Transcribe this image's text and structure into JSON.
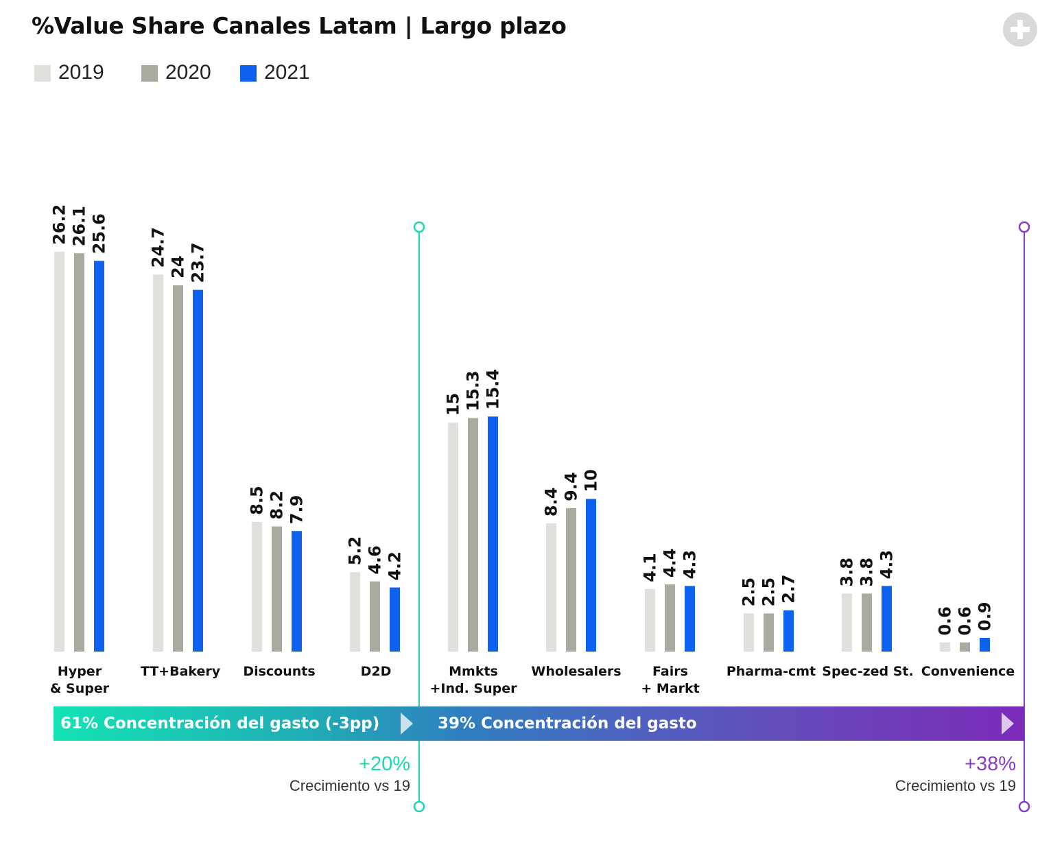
{
  "title": "%Value Share Canales Latam | Largo plazo",
  "add_button_icon": "plus-icon",
  "colors": {
    "2019": "#e0dfdb",
    "2020": "#aaaa9e",
    "2021": "#0e62ee",
    "teal": "#1ad8b2",
    "purple": "#8a3cc7"
  },
  "legend": [
    {
      "label": "2019",
      "color": "#e0dfdb"
    },
    {
      "label": "2020",
      "color": "#aaaa9e"
    },
    {
      "label": "2021",
      "color": "#0e62ee"
    }
  ],
  "chart_data": {
    "type": "bar",
    "categories": [
      [
        "Hyper",
        "& Super"
      ],
      [
        "TT+Bakery"
      ],
      [
        "Discounts"
      ],
      [
        "D2D"
      ],
      [
        "Mmkts",
        "+Ind. Super"
      ],
      [
        "Wholesalers"
      ],
      [
        "Fairs",
        "+ Markt"
      ],
      [
        "Pharma-cmt"
      ],
      [
        "Spec-zed St."
      ],
      [
        "Convenience"
      ]
    ],
    "series": [
      {
        "name": "2019",
        "values": [
          26.2,
          24.7,
          8.5,
          5.2,
          15,
          8.4,
          4.1,
          2.5,
          3.8,
          0.6
        ]
      },
      {
        "name": "2020",
        "values": [
          26.1,
          24,
          8.2,
          4.6,
          15.3,
          9.4,
          4.4,
          2.5,
          3.8,
          0.6
        ]
      },
      {
        "name": "2021",
        "values": [
          25.6,
          23.7,
          7.9,
          4.2,
          15.4,
          10,
          4.3,
          2.7,
          4.3,
          0.9
        ]
      }
    ],
    "ylim": [
      0,
      26.2
    ],
    "grid": false,
    "legend_position": "top-left"
  },
  "band": {
    "left_text": "61% Concentración del gasto (-3pp)",
    "right_text": "39% Concentración del gasto"
  },
  "growth": {
    "left": {
      "pct": "+20%",
      "label": "Crecimiento vs 19"
    },
    "right": {
      "pct": "+38%",
      "label": "Crecimiento vs 19"
    }
  }
}
